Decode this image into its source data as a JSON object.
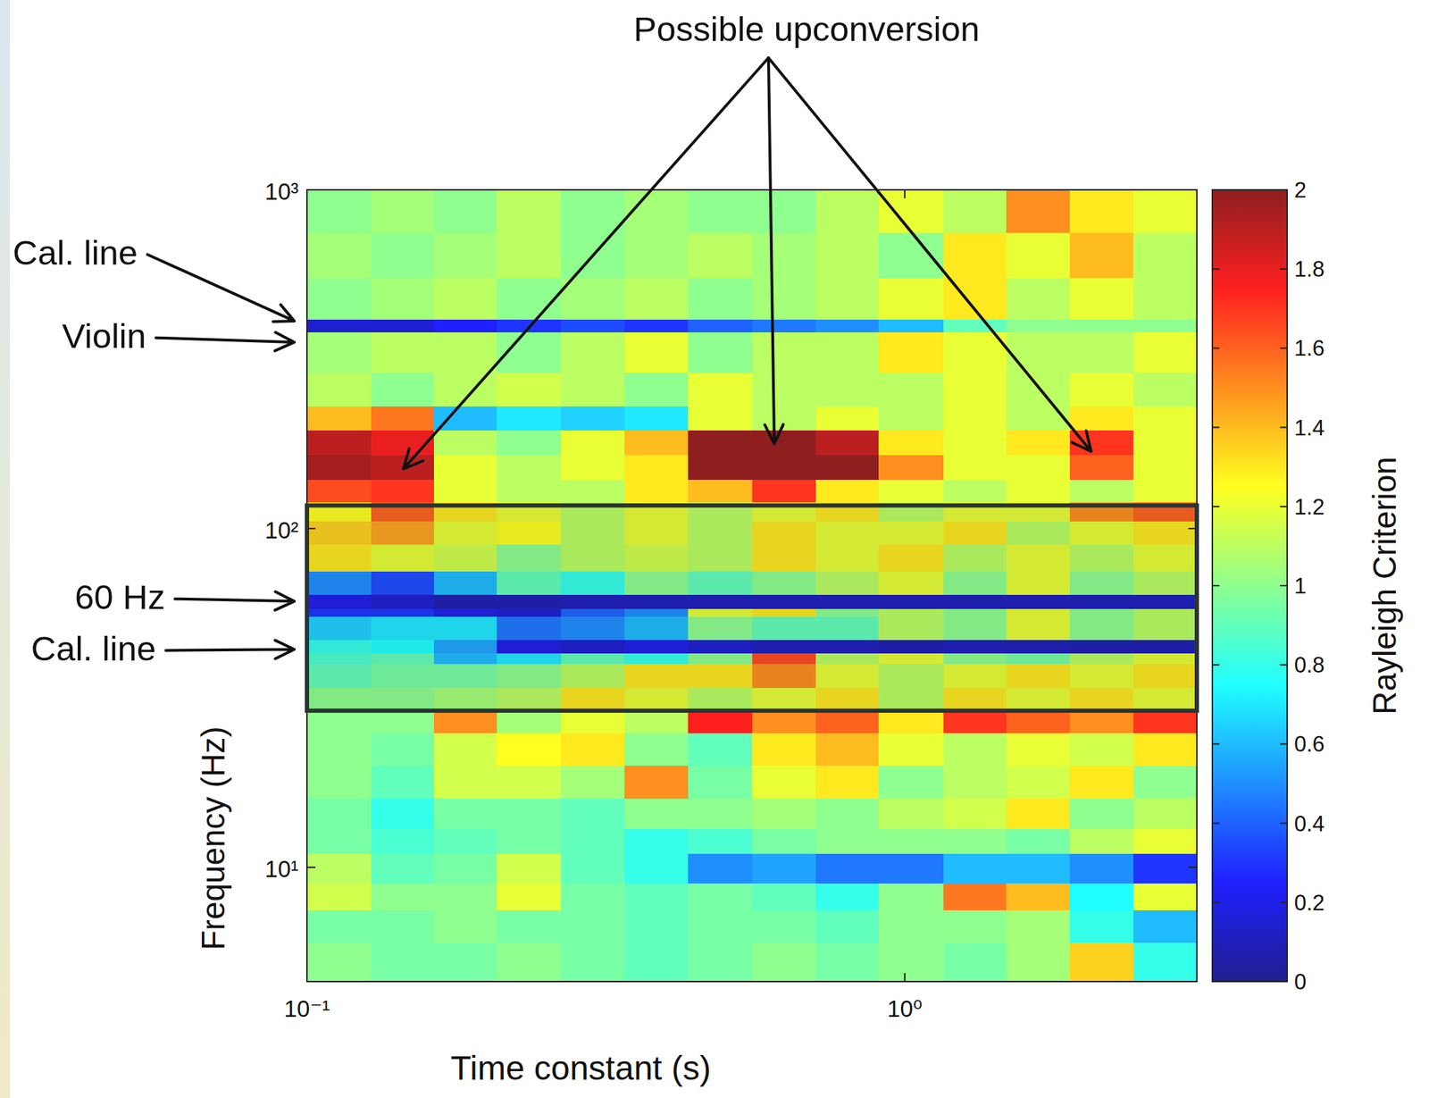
{
  "chart_data": {
    "type": "heatmap",
    "log": true,
    "x_title": "Time constant (s)",
    "y_title": "Frequency (Hz)",
    "xlim": [
      0.1,
      3.08
    ],
    "ylim": [
      4.6,
      1000
    ],
    "xticks": [
      {
        "value": 0.1,
        "label": "10⁻¹"
      },
      {
        "value": 1,
        "label": "10⁰"
      }
    ],
    "yticks": [
      {
        "value": 10,
        "label": "10¹"
      },
      {
        "value": 100,
        "label": "10²"
      },
      {
        "value": 1000,
        "label": "10³"
      }
    ],
    "x_bins": [
      0.1,
      0.128,
      0.163,
      0.208,
      0.266,
      0.34,
      0.434,
      0.555,
      0.709,
      0.905,
      1.16,
      1.48,
      1.89,
      2.41,
      3.08
    ],
    "y_bins": [
      4.6,
      6,
      7.5,
      9,
      11,
      13,
      16,
      20,
      25,
      29,
      34,
      40,
      43,
      47,
      55,
      58,
      64,
      75,
      90,
      105,
      120,
      140,
      165,
      195,
      230,
      290,
      380,
      415,
      550,
      750,
      1000
    ],
    "z": [
      [
        1,
        0.95,
        0.95,
        1,
        0.95,
        0.9,
        0.95,
        1,
        0.95,
        1,
        0.95,
        1.05,
        1.35,
        0.8
      ],
      [
        0.95,
        0.95,
        1,
        0.95,
        0.95,
        0.9,
        0.95,
        0.95,
        0.9,
        1,
        1,
        1.05,
        0.8,
        0.6
      ],
      [
        1.15,
        1,
        1,
        1.2,
        0.95,
        0.9,
        0.95,
        0.9,
        0.8,
        1,
        1.55,
        1.4,
        0.75,
        1.2
      ],
      [
        1.1,
        0.9,
        0.95,
        1.15,
        0.9,
        0.8,
        0.5,
        0.55,
        0.45,
        0.45,
        0.6,
        0.6,
        0.5,
        0.3
      ],
      [
        0.95,
        0.85,
        0.9,
        0.95,
        0.9,
        0.8,
        0.85,
        0.95,
        1,
        1,
        1,
        0.95,
        1.1,
        1.2
      ],
      [
        0.95,
        0.8,
        0.95,
        0.95,
        0.9,
        1,
        1,
        1.05,
        1,
        1.1,
        1.15,
        1.3,
        1,
        1.1
      ],
      [
        1,
        0.9,
        1.15,
        1.15,
        1.05,
        1.5,
        0.95,
        1.2,
        1.3,
        1,
        1.1,
        1.15,
        1.3,
        1
      ],
      [
        1,
        0.95,
        1.15,
        1.25,
        1.3,
        1,
        0.9,
        1.3,
        1.4,
        1.2,
        1.1,
        1.2,
        1.15,
        1.3
      ],
      [
        1,
        1,
        1.5,
        1.05,
        1.2,
        1.1,
        1.75,
        1.5,
        1.6,
        1.3,
        1.7,
        1.6,
        1.5,
        1.7
      ],
      [
        1,
        1,
        1.05,
        1.1,
        1.3,
        1.2,
        1.1,
        1.2,
        1.3,
        1.1,
        1.3,
        1.2,
        1.3,
        1.2
      ],
      [
        0.9,
        0.95,
        0.95,
        1,
        1.1,
        1.3,
        1.3,
        1.5,
        1.2,
        1.1,
        1.2,
        1.3,
        1.2,
        1.3
      ],
      [
        0.85,
        0.9,
        0.6,
        0.7,
        0.9,
        0.8,
        1,
        1.65,
        1.1,
        1.2,
        1,
        0.95,
        1.1,
        1.2
      ],
      [
        0.8,
        0.75,
        0.55,
        0.2,
        0.15,
        0.2,
        0.15,
        0.1,
        0.1,
        0.08,
        0.1,
        0.1,
        0.08,
        0.08
      ],
      [
        0.65,
        0.7,
        0.7,
        0.45,
        0.5,
        0.6,
        1,
        0.9,
        0.9,
        1.1,
        1,
        1.2,
        1,
        1.1
      ],
      [
        0.3,
        0.3,
        0.2,
        0.15,
        0.4,
        0.5,
        1.2,
        1.3,
        1,
        1.1,
        1,
        1.2,
        1,
        1.1
      ],
      [
        0.2,
        0.15,
        0.08,
        0.08,
        0.1,
        0.1,
        0.1,
        0.1,
        0.1,
        0.1,
        0.1,
        0.1,
        0.1,
        0.1
      ],
      [
        0.5,
        0.35,
        0.6,
        0.9,
        0.8,
        1,
        0.9,
        1,
        1.1,
        1.2,
        1,
        1.2,
        1,
        1.1
      ],
      [
        1.3,
        1.2,
        1.15,
        1,
        1.1,
        1.15,
        1.1,
        1.3,
        1.2,
        1.3,
        1.1,
        1.2,
        1.1,
        1.2
      ],
      [
        1.35,
        1.45,
        1.2,
        1.25,
        1.1,
        1.2,
        1.1,
        1.3,
        1.2,
        1.2,
        1.3,
        1.1,
        1.2,
        1.3
      ],
      [
        1.25,
        1.6,
        1.3,
        1.2,
        1.1,
        1.2,
        1.1,
        1.2,
        1.3,
        1.1,
        1.2,
        1.2,
        1.5,
        1.6
      ],
      [
        1.65,
        1.7,
        1.2,
        1.1,
        1.1,
        1.3,
        1.4,
        1.7,
        1.3,
        1.2,
        1.1,
        1.2,
        1.1,
        1.2
      ],
      [
        1.95,
        1.9,
        1.2,
        1.1,
        1.2,
        1.3,
        2,
        2,
        2,
        1.5,
        1.2,
        1.2,
        1.6,
        1.2
      ],
      [
        1.9,
        1.8,
        1.1,
        1,
        1.2,
        1.4,
        2,
        2,
        1.9,
        1.3,
        1.2,
        1.3,
        1.7,
        1.2
      ],
      [
        1.4,
        1.55,
        0.6,
        0.7,
        0.65,
        0.7,
        1.2,
        1.1,
        1.2,
        1.1,
        1.2,
        1.1,
        1.3,
        1.2
      ],
      [
        1.1,
        1,
        1.1,
        1.15,
        1.1,
        1,
        1.2,
        1.1,
        1.1,
        1.1,
        1.2,
        1.1,
        1.2,
        1.1
      ],
      [
        1.05,
        1.1,
        1.1,
        1,
        1.1,
        1.2,
        1,
        1.1,
        1.1,
        1.3,
        1.2,
        1.1,
        1.1,
        1.2
      ],
      [
        0.15,
        0.15,
        0.25,
        0.3,
        0.35,
        0.3,
        0.4,
        0.45,
        0.5,
        0.6,
        0.9,
        1,
        1,
        1
      ],
      [
        1,
        1.05,
        1.1,
        1,
        1.05,
        1.1,
        1,
        1.05,
        1.1,
        1.2,
        1.3,
        1.1,
        1.2,
        1.1
      ],
      [
        1.05,
        1,
        1.05,
        1.1,
        1,
        1.05,
        1.1,
        1.05,
        1.1,
        1,
        1.3,
        1.2,
        1.4,
        1.1
      ],
      [
        1,
        1.05,
        1,
        1.1,
        1,
        1.05,
        1,
        1,
        1.1,
        1.2,
        1.1,
        1.5,
        1.3,
        1.2
      ]
    ],
    "colorbar": {
      "label": "Rayleigh Criterion",
      "range": [
        0,
        2
      ],
      "ticks": [
        0,
        0.2,
        0.4,
        0.6,
        0.8,
        1,
        1.2,
        1.4,
        1.6,
        1.8,
        2
      ]
    },
    "highlight": {
      "y": [
        29,
        117
      ]
    },
    "annotations": [
      {
        "text": "Possible upconversion",
        "targets": [
          {
            "x": 0.145,
            "y": 150
          },
          {
            "x": 0.605,
            "y": 178
          },
          {
            "x": 2.05,
            "y": 169
          }
        ]
      },
      {
        "text": "Cal. line",
        "y": 410
      },
      {
        "text": "Violin",
        "y": 355
      },
      {
        "text": "60 Hz",
        "y": 61
      },
      {
        "text": "Cal. line",
        "y": 44
      }
    ]
  }
}
